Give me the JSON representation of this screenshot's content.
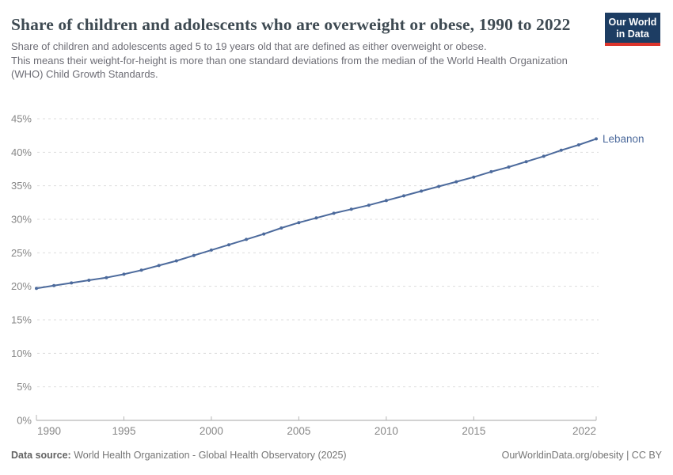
{
  "header": {
    "title_lines": [
      "Share of children and adolescents who are overweight or obese, 1990",
      "to 2022"
    ],
    "subtitle_lines": [
      "Share of children and adolescents aged 5 to 19 years old that are defined as either overweight or obese.",
      "This means their weight-for-height is more than one standard deviations from the median of the World Health Organization",
      "(WHO) Child Growth Standards."
    ]
  },
  "logo": {
    "line1": "Our World",
    "line2": "in Data",
    "bg_color": "#1d3d63",
    "bar_color": "#dc352c"
  },
  "chart_data": {
    "type": "line",
    "title": "Share of children and adolescents who are overweight or obese, 1990 to 2022",
    "x": [
      1990,
      1991,
      1992,
      1993,
      1994,
      1995,
      1996,
      1997,
      1998,
      1999,
      2000,
      2001,
      2002,
      2003,
      2004,
      2005,
      2006,
      2007,
      2008,
      2009,
      2010,
      2011,
      2012,
      2013,
      2014,
      2015,
      2016,
      2017,
      2018,
      2019,
      2020,
      2021,
      2022
    ],
    "series": [
      {
        "name": "Lebanon",
        "color": "#4c6a9c",
        "values": [
          19.7,
          20.1,
          20.5,
          20.9,
          21.3,
          21.8,
          22.4,
          23.1,
          23.8,
          24.6,
          25.4,
          26.2,
          27.0,
          27.8,
          28.7,
          29.5,
          30.2,
          30.9,
          31.5,
          32.1,
          32.8,
          33.5,
          34.2,
          34.9,
          35.6,
          36.3,
          37.1,
          37.8,
          38.6,
          39.4,
          40.3,
          41.1,
          42.0
        ]
      }
    ],
    "xlabel": "",
    "ylabel": "",
    "xlim": [
      1990,
      2022
    ],
    "ylim": [
      0,
      45
    ],
    "yticks": [
      0,
      5,
      10,
      15,
      20,
      25,
      30,
      35,
      40,
      45
    ],
    "ytick_suffix": "%",
    "xticks": [
      1990,
      1995,
      2000,
      2005,
      2010,
      2015,
      2022
    ],
    "grid": "horizontal-dashed",
    "legend_position": "end-of-line-label",
    "end_label": "Lebanon"
  },
  "colors": {
    "line": "#4c6a9c",
    "grid": "#dddddd",
    "axis": "#a5a5a5",
    "axis_tick": "#b5b5b5",
    "tick_label": "#878787"
  },
  "footer": {
    "datasource_label": "Data source:",
    "datasource_text": "World Health Organization - Global Health Observatory (2025)",
    "license_text": "OurWorldinData.org/obesity | CC BY"
  }
}
